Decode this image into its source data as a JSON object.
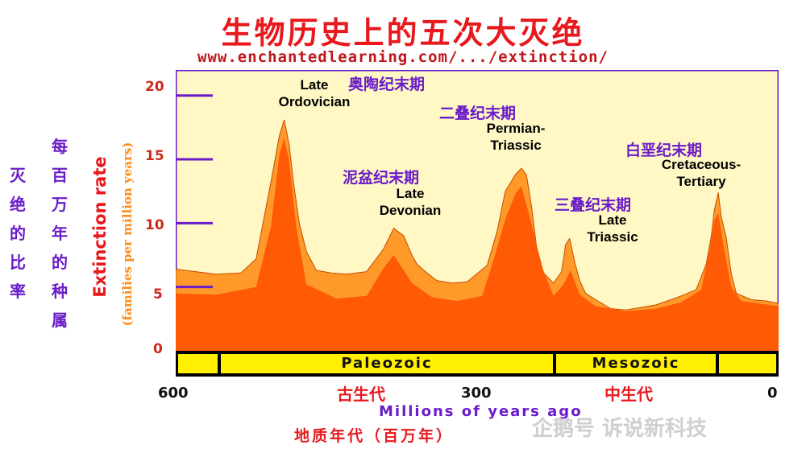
{
  "title": "生物历史上的五次大灭绝",
  "source_url": "www.enchantedlearning.com/.../extinction/",
  "left_labels": {
    "col1": [
      "灭",
      "绝",
      "的",
      "比",
      "率"
    ],
    "col2": [
      "每",
      "百",
      "万",
      "年",
      "的",
      "种",
      "属"
    ]
  },
  "ylabel_main": "Extinction rate",
  "ylabel_sub": "(families per million years)",
  "annotations": {
    "ordovician": {
      "en": [
        "Late",
        "Ordovician"
      ],
      "cn": "奥陶纪末期"
    },
    "devonian": {
      "en": [
        "Late",
        "Devonian"
      ],
      "cn": "泥盆纪末期"
    },
    "permian": {
      "en": [
        "Permian-",
        "Triassic"
      ],
      "cn": "二叠纪末期"
    },
    "triassic": {
      "en": [
        "Late",
        "Triassic"
      ],
      "cn": "三叠纪末期"
    },
    "cretaceous": {
      "en": [
        "Cretaceous-",
        "Tertiary"
      ],
      "cn": "白垩纪末期"
    }
  },
  "eras": [
    "Paleozoic",
    "Mesozoic"
  ],
  "x_tick_labels": [
    "600",
    "300",
    "0"
  ],
  "era_cn": [
    "古生代",
    "中生代"
  ],
  "xlabel": "Millions of years ago",
  "footer": "地质年代（百万年）",
  "watermark": "企鹅号 诉说新科技",
  "colors": {
    "plot_bg": "#fff8c4",
    "frame": "#6a1cc9",
    "upper_fill": "#ff9a2a",
    "lower_fill": "#ff5a05",
    "era_fill": "#ffef00",
    "title_red": "#e8181d"
  },
  "chart_data": {
    "type": "area",
    "xlim": [
      600,
      0
    ],
    "ylim": [
      0,
      22
    ],
    "y_ticks": [
      0,
      5,
      10,
      15,
      20
    ],
    "x_ticks": [
      600,
      300,
      0
    ],
    "grid": false,
    "series": [
      {
        "name": "upper",
        "x": [
          600,
          590,
          560,
          535,
          520,
          505,
          497,
          492,
          487,
          483,
          477,
          470,
          460,
          445,
          430,
          410,
          393,
          383,
          373,
          365,
          360,
          350,
          340,
          325,
          310,
          290,
          280,
          272,
          262,
          256,
          251,
          246,
          241,
          234,
          224,
          216,
          212,
          208,
          203,
          198,
          192,
          182,
          167,
          152,
          137,
          122,
          107,
          97,
          82,
          72,
          67,
          64,
          60,
          57,
          52,
          47,
          42,
          27,
          12,
          0
        ],
        "values": [
          6.4,
          6.3,
          6.0,
          6.1,
          7.2,
          13.3,
          16.8,
          18.1,
          16.1,
          13.3,
          10.0,
          7.8,
          6.3,
          6.1,
          6.0,
          6.2,
          8.0,
          9.6,
          9.0,
          7.5,
          6.8,
          6.1,
          5.5,
          5.3,
          5.4,
          6.7,
          9.4,
          12.5,
          13.8,
          14.3,
          13.8,
          11.4,
          8.2,
          6.1,
          5.3,
          6.2,
          8.3,
          8.8,
          7.0,
          5.5,
          4.5,
          4.0,
          3.3,
          3.2,
          3.4,
          3.6,
          4.0,
          4.3,
          4.8,
          6.8,
          9.0,
          11.0,
          12.4,
          10.5,
          8.8,
          6.0,
          4.5,
          4.0,
          3.9,
          3.7
        ]
      },
      {
        "name": "lower",
        "x": [
          600,
          560,
          520,
          505,
          497,
          492,
          487,
          480,
          470,
          440,
          410,
          393,
          383,
          365,
          345,
          320,
          295,
          283,
          272,
          262,
          256,
          246,
          236,
          224,
          214,
          207,
          198,
          182,
          152,
          122,
          97,
          77,
          69,
          64,
          60,
          55,
          47,
          37,
          0
        ],
        "values": [
          4.5,
          4.4,
          5.0,
          9.8,
          15.3,
          16.7,
          14.8,
          9.7,
          5.2,
          4.1,
          4.3,
          6.5,
          7.5,
          5.3,
          4.2,
          3.9,
          4.3,
          7.3,
          10.3,
          12.3,
          12.9,
          10.0,
          6.7,
          4.3,
          5.2,
          6.3,
          4.4,
          3.5,
          3.1,
          3.3,
          3.8,
          4.8,
          7.8,
          10.2,
          10.8,
          8.3,
          5.0,
          3.9,
          3.5
        ]
      }
    ]
  }
}
